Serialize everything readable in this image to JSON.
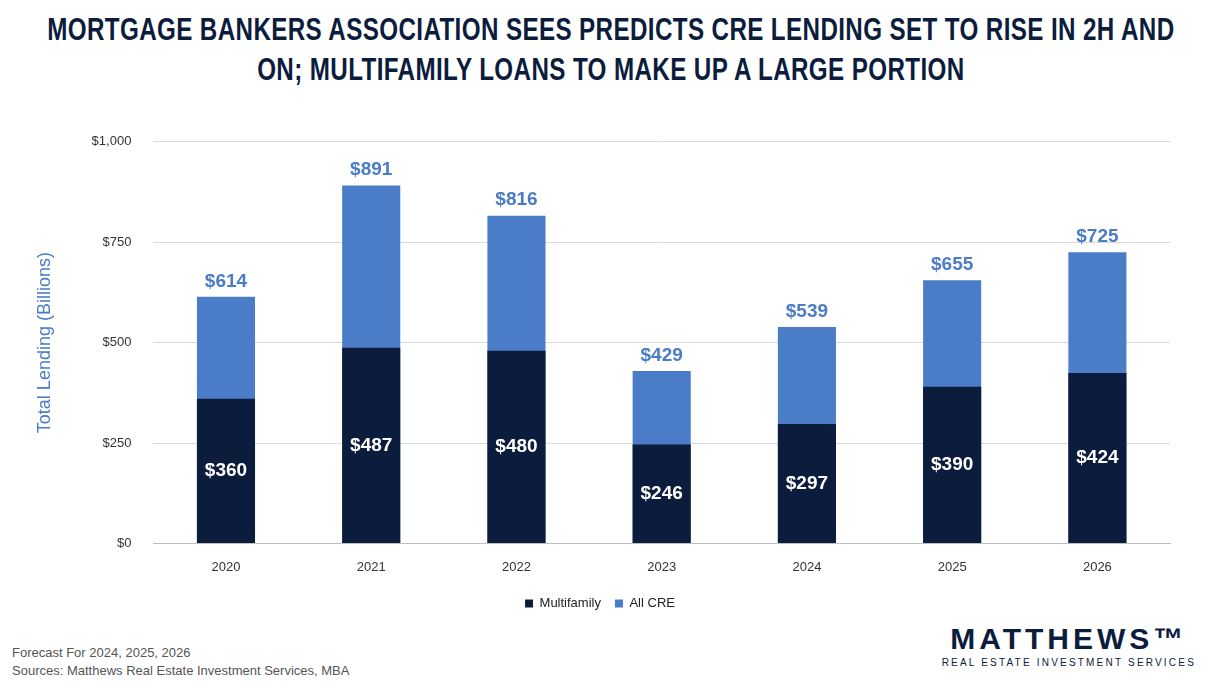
{
  "chart_data": {
    "type": "bar",
    "title": "MORTGAGE BANKERS ASSOCIATION SEES PREDICTS CRE LENDING SET TO RISE IN 2H AND ON; MULTIFAMILY LOANS TO MAKE UP A LARGE PORTION",
    "y_label": "Total Lending (Billions)",
    "categories": [
      "2020",
      "2021",
      "2022",
      "2023",
      "2024",
      "2025",
      "2026"
    ],
    "series": [
      {
        "name": "Multifamily",
        "color": "#0b1c3d",
        "values": [
          360,
          487,
          480,
          246,
          297,
          390,
          424
        ],
        "value_labels": [
          "$360",
          "$487",
          "$480",
          "$246",
          "$297",
          "$390",
          "$424"
        ]
      },
      {
        "name": "All CRE",
        "color": "#4a7cc7",
        "values": [
          614,
          891,
          816,
          429,
          539,
          655,
          725
        ],
        "value_labels": [
          "$614",
          "$891",
          "$816",
          "$429",
          "$539",
          "$655",
          "$725"
        ]
      }
    ],
    "ylim": [
      0,
      1000
    ],
    "yticks": [
      {
        "value": 0,
        "label": "$0"
      },
      {
        "value": 250,
        "label": "$250"
      },
      {
        "value": 500,
        "label": "$500"
      },
      {
        "value": 750,
        "label": "$750"
      },
      {
        "value": 1000,
        "label": "$1,000"
      }
    ],
    "grid": true,
    "legend": "bottom",
    "stacked": false,
    "data_labels": true,
    "annotations": [
      "Forecast For 2024, 2025, 2026",
      "Sources: Matthews Real Estate Investment Services, MBA"
    ]
  },
  "branding": {
    "name": "MATTHEWS™",
    "tagline": "REAL ESTATE INVESTMENT SERVICES"
  }
}
